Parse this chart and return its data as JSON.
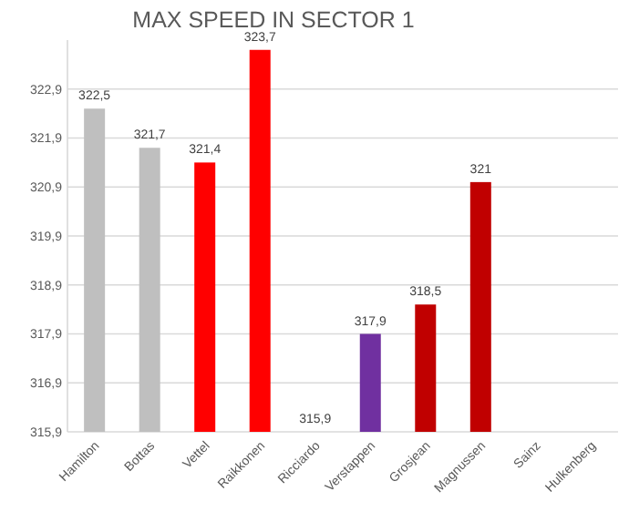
{
  "chart_data": {
    "type": "bar",
    "title": "MAX SPEED IN SECTOR 1",
    "categories": [
      "Hamilton",
      "Bottas",
      "Vettel",
      "Raikkonen",
      "Ricciardo",
      "Verstappen",
      "Grosjean",
      "Magnussen",
      "Sainz",
      "Hulkenberg"
    ],
    "values": [
      322.5,
      321.7,
      321.4,
      323.7,
      315.9,
      317.9,
      318.5,
      321,
      null,
      null
    ],
    "colors": [
      "#bfbfbf",
      "#bfbfbf",
      "#ff0000",
      "#ff0000",
      null,
      "#7030a0",
      "#c00000",
      "#c00000",
      null,
      null
    ],
    "value_labels": [
      "322,5",
      "321,7",
      "321,4",
      "323,7",
      "315,9",
      "317,9",
      "318,5",
      "321",
      null,
      null
    ],
    "ylim": [
      315.9,
      323.9
    ],
    "yticks": [
      {
        "value": 315.9,
        "label": "315,9"
      },
      {
        "value": 316.9,
        "label": "316,9"
      },
      {
        "value": 317.9,
        "label": "317,9"
      },
      {
        "value": 318.9,
        "label": "318,9"
      },
      {
        "value": 319.9,
        "label": "319,9"
      },
      {
        "value": 320.9,
        "label": "320,9"
      },
      {
        "value": 321.9,
        "label": "321,9"
      },
      {
        "value": 322.9,
        "label": "322,9"
      }
    ],
    "grid": "y"
  }
}
